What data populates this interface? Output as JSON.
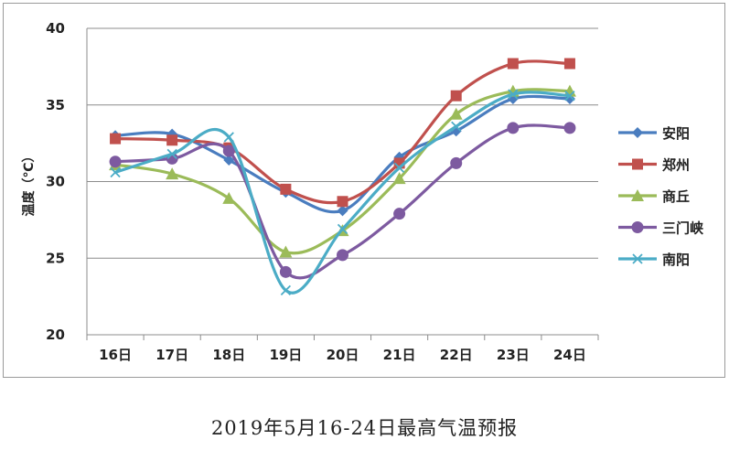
{
  "caption": "2019年5月16-24日最高气温预报",
  "chart_data": {
    "type": "line",
    "title": "",
    "xlabel": "",
    "ylabel": "温度（℃）",
    "ylim": [
      20,
      40
    ],
    "yticks": [
      20,
      25,
      30,
      35,
      40
    ],
    "grid": "horizontal",
    "legend_position": "right",
    "smooth": true,
    "categories": [
      "16日",
      "17日",
      "18日",
      "19日",
      "20日",
      "21日",
      "22日",
      "23日",
      "24日"
    ],
    "series": [
      {
        "name": "安阳",
        "color": "#4a7dbf",
        "marker": "diamond",
        "values": [
          33.0,
          33.1,
          31.4,
          29.3,
          28.1,
          31.6,
          33.3,
          35.4,
          35.4
        ]
      },
      {
        "name": "郑州",
        "color": "#c0504d",
        "marker": "square",
        "values": [
          32.8,
          32.7,
          32.2,
          29.5,
          28.7,
          31.2,
          35.6,
          37.7,
          37.7
        ]
      },
      {
        "name": "商丘",
        "color": "#9bbb59",
        "marker": "triangle",
        "values": [
          31.1,
          30.5,
          28.9,
          25.4,
          26.8,
          30.2,
          34.4,
          35.9,
          35.9
        ]
      },
      {
        "name": "三门峡",
        "color": "#7d5aa0",
        "marker": "circle",
        "values": [
          31.3,
          31.5,
          32.0,
          24.1,
          25.2,
          27.9,
          31.2,
          33.5,
          33.5
        ]
      },
      {
        "name": "南阳",
        "color": "#4bacc6",
        "marker": "x",
        "values": [
          30.6,
          31.8,
          32.9,
          22.9,
          26.9,
          30.9,
          33.6,
          35.7,
          35.6
        ]
      }
    ]
  }
}
